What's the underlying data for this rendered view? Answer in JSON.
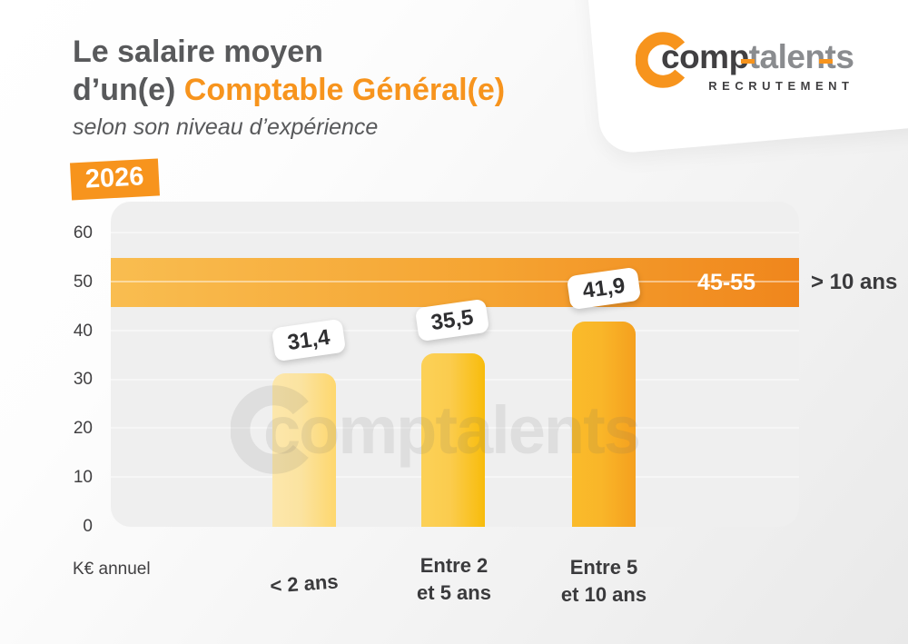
{
  "header": {
    "title_line1": "Le salaire moyen",
    "title_line2_prefix": "d’un(e) ",
    "title_line2_highlight": "Comptable Général(e)",
    "subtitle": "selon son niveau d’expérience",
    "year_badge": "2026"
  },
  "logo": {
    "word_dark": "comp",
    "word_light": "talents",
    "tagline": "RECRUTEMENT"
  },
  "axis": {
    "unit_label": "K€ annuel",
    "y_ticks": [
      "60",
      "50",
      "40",
      "30",
      "20",
      "10",
      "0"
    ]
  },
  "x_labels": [
    {
      "l1": "< 2 ans",
      "l2": ""
    },
    {
      "l1": "Entre 2",
      "l2": "et 5 ans"
    },
    {
      "l1": "Entre 5",
      "l2": "et 10 ans"
    }
  ],
  "band": {
    "label": "45-55",
    "category_label": "> 10 ans"
  },
  "watermark": {
    "text": "comptalents"
  },
  "colors": {
    "brand_orange": "#F7941D",
    "title_gray": "#58595B",
    "dark_text": "#414042",
    "plot_bg": "#EFEFEF",
    "band_gradient": [
      "#F9BD50",
      "#F0861C"
    ],
    "bar1_gradient": [
      "#FCE7AC",
      "#FED76D"
    ],
    "bar2_gradient": [
      "#FCD157",
      "#F8BC0B"
    ],
    "bar3_gradient": [
      "#FABB2A",
      "#F5A01E"
    ]
  },
  "chart_data": {
    "type": "bar",
    "title": "Le salaire moyen d’un(e) Comptable Général(e) selon son niveau d’expérience",
    "year": 2026,
    "categories": [
      "< 2 ans",
      "Entre 2 et 5 ans",
      "Entre 5 et 10 ans",
      "> 10 ans"
    ],
    "values": [
      31.4,
      35.5,
      41.9
    ],
    "value_labels": [
      "31,4",
      "35,5",
      "41,9"
    ],
    "band": {
      "category": "> 10 ans",
      "range": [
        45,
        55
      ],
      "label": "45-55"
    },
    "ylabel": "K€ annuel",
    "ylim": [
      0,
      66.5
    ],
    "yticks": [
      0,
      10,
      20,
      30,
      40,
      50,
      60
    ],
    "grid": true,
    "legend": false,
    "annotations": [
      "values shown in white tilted badges above bars",
      "45-55 shown as horizontal band"
    ]
  }
}
